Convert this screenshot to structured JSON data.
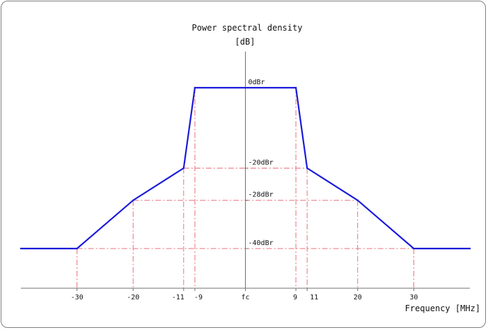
{
  "chart_data": {
    "type": "line",
    "title": "Power spectral density",
    "ylabel": "[dB]",
    "xlabel": "Frequency [MHz]",
    "center_label": "fc",
    "xlim": [
      -40,
      40
    ],
    "ylim": [
      -40,
      0
    ],
    "series": [
      {
        "x": [
          -40,
          -30,
          -20,
          -11,
          -9,
          9,
          11,
          20,
          30,
          40
        ],
        "y": [
          -40,
          -40,
          -28,
          -20,
          0,
          0,
          -20,
          -28,
          -40,
          -40
        ],
        "color": "#1a1adb"
      }
    ],
    "x_ticks": [
      {
        "value": -30,
        "label": "-30"
      },
      {
        "value": -20,
        "label": "-20"
      },
      {
        "value": -11,
        "label": "-11"
      },
      {
        "value": -9,
        "label": "-9"
      },
      {
        "value": 0,
        "label": "fc"
      },
      {
        "value": 9,
        "label": "9"
      },
      {
        "value": 11,
        "label": "11"
      },
      {
        "value": 20,
        "label": "20"
      },
      {
        "value": 30,
        "label": "30"
      }
    ],
    "y_levels": [
      {
        "value": 0,
        "label": "0dBr"
      },
      {
        "value": -20,
        "label": "-20dBr"
      },
      {
        "value": -28,
        "label": "-28dBr"
      },
      {
        "value": -40,
        "label": "-40dBr"
      }
    ],
    "guide_color": "#e8707a",
    "axis_color": "#707070",
    "grid": false,
    "legend": "none"
  }
}
